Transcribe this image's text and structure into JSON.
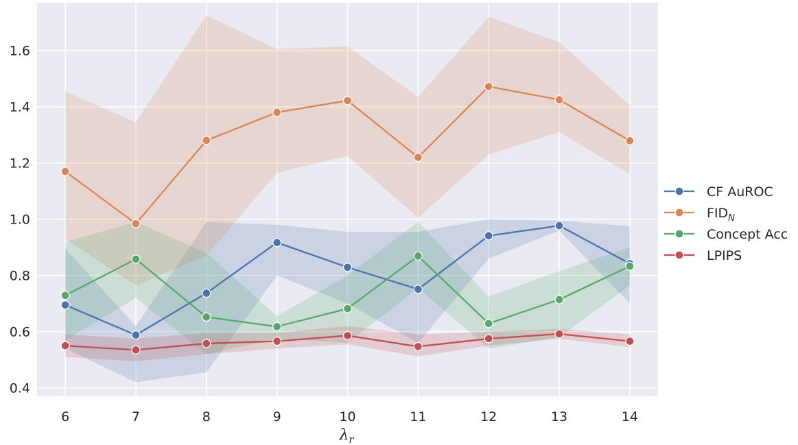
{
  "chart_data": {
    "type": "line",
    "title": "",
    "xlabel": "λ",
    "xlabel_sub": "r",
    "ylabel": "",
    "x": [
      6,
      7,
      8,
      9,
      10,
      11,
      12,
      13,
      14
    ],
    "xlim": [
      5.6,
      14.4
    ],
    "ylim": [
      0.37,
      1.77
    ],
    "yticks": [
      0.4,
      0.6,
      0.8,
      1.0,
      1.2,
      1.4,
      1.6
    ],
    "ytick_labels": [
      "0.4",
      "0.6",
      "0.8",
      "1.0",
      "1.2",
      "1.4",
      "1.6"
    ],
    "xtick_labels": [
      "6",
      "7",
      "8",
      "9",
      "10",
      "11",
      "12",
      "13",
      "14"
    ],
    "grid": true,
    "legend_position": "right",
    "series": [
      {
        "name": "CF AuROC",
        "color": "#4c72b0",
        "values": [
          0.695,
          0.588,
          0.737,
          0.917,
          0.829,
          0.751,
          0.941,
          0.977,
          0.842
        ],
        "lower": [
          0.54,
          0.42,
          0.455,
          0.8,
          0.7,
          0.56,
          0.86,
          0.96,
          0.7
        ],
        "upper": [
          0.895,
          0.62,
          0.99,
          0.98,
          0.955,
          0.955,
          1.0,
          0.995,
          0.975
        ]
      },
      {
        "name": "FID",
        "name_sub": "N",
        "color": "#dd8452",
        "values": [
          1.17,
          0.984,
          1.28,
          1.38,
          1.422,
          1.22,
          1.472,
          1.425,
          1.279
        ],
        "lower": [
          0.93,
          0.765,
          0.87,
          1.165,
          1.225,
          1.005,
          1.23,
          1.31,
          1.16
        ],
        "upper": [
          1.455,
          1.345,
          1.725,
          1.605,
          1.615,
          1.435,
          1.72,
          1.63,
          1.405
        ]
      },
      {
        "name": "Concept Acc",
        "color": "#55a868",
        "values": [
          0.729,
          0.858,
          0.652,
          0.618,
          0.682,
          0.869,
          0.629,
          0.714,
          0.833
        ],
        "lower": [
          0.57,
          0.72,
          0.52,
          0.575,
          0.56,
          0.755,
          0.54,
          0.58,
          0.765
        ],
        "upper": [
          0.92,
          0.99,
          0.88,
          0.655,
          0.8,
          0.99,
          0.725,
          0.815,
          0.9
        ]
      },
      {
        "name": "LPIPS",
        "color": "#c44e52",
        "values": [
          0.55,
          0.535,
          0.558,
          0.566,
          0.586,
          0.547,
          0.575,
          0.592,
          0.566
        ],
        "lower": [
          0.51,
          0.495,
          0.52,
          0.54,
          0.555,
          0.512,
          0.55,
          0.575,
          0.545
        ],
        "upper": [
          0.59,
          0.575,
          0.595,
          0.595,
          0.62,
          0.59,
          0.6,
          0.61,
          0.59
        ]
      }
    ]
  }
}
